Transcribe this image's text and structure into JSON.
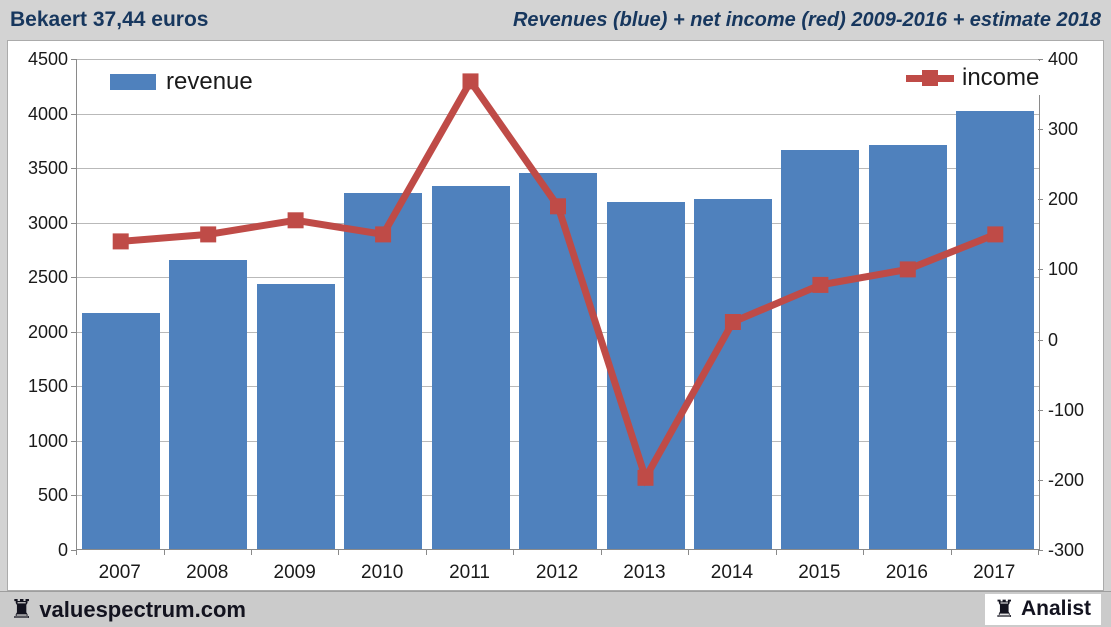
{
  "header": {
    "left_title": "Bekaert 37,44 euros",
    "right_title": "Revenues (blue) + net income (red) 2009-2016 + estimate 2018"
  },
  "footer": {
    "site": "valuespectrum.com",
    "brand": "Analist",
    "rook_glyph": "♜"
  },
  "colors": {
    "bar_blue": "#4f81bd",
    "line_red": "#bf4b47",
    "title_blue": "#17375e",
    "gridline": "#b9b9b9",
    "axis": "#8a8a8a"
  },
  "chart_data": {
    "type": "bar",
    "subtype": "combo-bar-line",
    "title": "Revenues (blue) + net income (red) 2009-2016 + estimate 2018",
    "categories": [
      "2007",
      "2008",
      "2009",
      "2010",
      "2011",
      "2012",
      "2013",
      "2014",
      "2015",
      "2016",
      "2017"
    ],
    "series": [
      {
        "name": "revenue",
        "type": "bar",
        "axis": "left",
        "color": "#4f81bd",
        "values": [
          2175,
          2660,
          2435,
          3270,
          3340,
          3460,
          3190,
          3215,
          3665,
          3715,
          4020
        ]
      },
      {
        "name": "income",
        "type": "line",
        "axis": "right",
        "color": "#bf4b47",
        "values": [
          140,
          150,
          170,
          150,
          368,
          190,
          -197,
          25,
          78,
          100,
          150
        ]
      }
    ],
    "left_axis": {
      "min": 0,
      "max": 4500,
      "step": 500,
      "ticks": [
        4500,
        4000,
        3500,
        3000,
        2500,
        2000,
        1500,
        1000,
        500,
        0
      ]
    },
    "right_axis": {
      "min": -300,
      "max": 400,
      "step": 100,
      "ticks": [
        400,
        300,
        200,
        100,
        0,
        -100,
        -200,
        -300
      ]
    },
    "legend": {
      "revenue_label": "revenue",
      "income_label": "income",
      "position": "top-inside"
    },
    "grid": true
  }
}
